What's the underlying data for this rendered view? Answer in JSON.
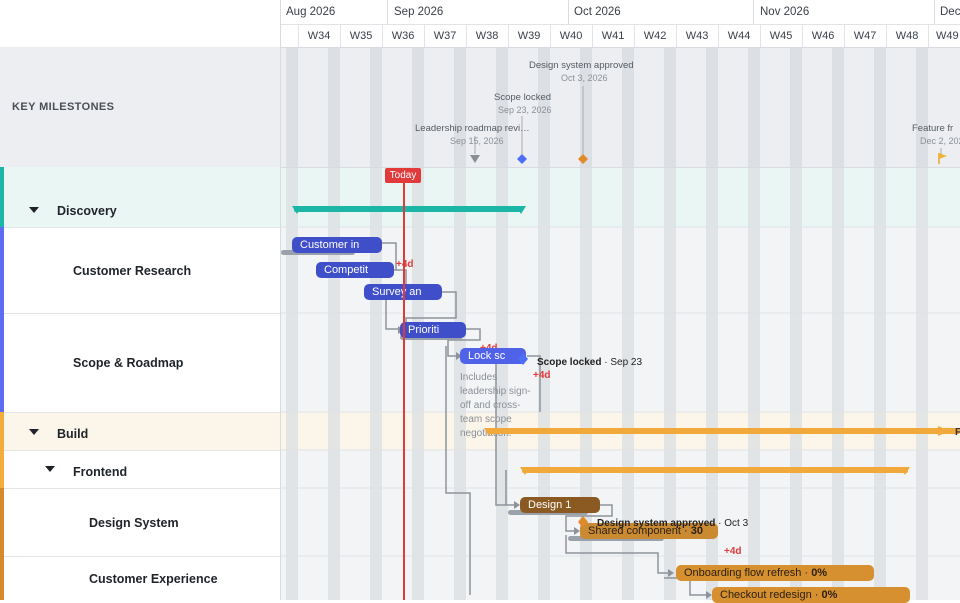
{
  "timeline": {
    "months": [
      "Aug 2026",
      "Sep 2026",
      "Oct 2026",
      "Nov 2026",
      "Dec"
    ],
    "weeks": [
      "W34",
      "W35",
      "W36",
      "W37",
      "W38",
      "W39",
      "W40",
      "W41",
      "W42",
      "W43",
      "W44",
      "W45",
      "W46",
      "W47",
      "W48",
      "W49"
    ],
    "today_label": "Today"
  },
  "milestones_panel": {
    "title": "KEY MILESTONES",
    "items": [
      {
        "label": "Leadership roadmap revi…",
        "date": "Sep 15, 2026",
        "shape": "triangle",
        "color": "#8a8f96"
      },
      {
        "label": "Scope locked",
        "date": "Sep 23, 2026",
        "shape": "diamond",
        "color": "#4f6ef7"
      },
      {
        "label": "Design system approved",
        "date": "Oct 3, 2026",
        "shape": "diamond",
        "color": "#e08a2c"
      },
      {
        "label": "Feature fr",
        "date": "Dec 2, 202",
        "shape": "flag",
        "color": "#f0b432"
      }
    ]
  },
  "rows": [
    {
      "label": "Discovery",
      "level": 0,
      "color": "#1bb6a6"
    },
    {
      "label": "Customer Research",
      "level": 1,
      "color": "#5b6cf0"
    },
    {
      "label": "Scope & Roadmap",
      "level": 1,
      "color": "#5b6cf0"
    },
    {
      "label": "Build",
      "level": 0,
      "color": "#f2ad3c"
    },
    {
      "label": "Frontend",
      "level": 1,
      "color": "#f2ad3c"
    },
    {
      "label": "Design System",
      "level": 2,
      "color": "#d68a2e"
    },
    {
      "label": "Customer Experience",
      "level": 2,
      "color": "#d68a2e"
    }
  ],
  "tasks": {
    "customer_interviews": "Customer in",
    "competitive": "Competit",
    "survey": "Survey an",
    "prioritize": "Prioriti",
    "lock": "Lock sc",
    "design1": "Design 1",
    "shared": "Shared component",
    "shared_pct": "30",
    "onboarding": "Onboarding flow refresh",
    "onboarding_pct": "0%",
    "checkout": "Checkout redesign",
    "checkout_pct": "0%",
    "note": "Includes leadership sign-off and cross-team scope negotiation.",
    "scope_ms": "Scope locked",
    "scope_ms_date": "Sep 23",
    "ds_ms": "Design system approved",
    "ds_ms_date": "Oct 3",
    "build_end": "F"
  },
  "delays": {
    "d1": "+4d",
    "d2": "+4d",
    "d3": "+4d",
    "d4": "+4d"
  },
  "colors": {
    "discovery": "#1bb6a6",
    "research": "#3f4fc9",
    "build": "#f0a93a",
    "design": "#8a5a22",
    "ux": "#d6902f",
    "today": "#e03a3a"
  }
}
